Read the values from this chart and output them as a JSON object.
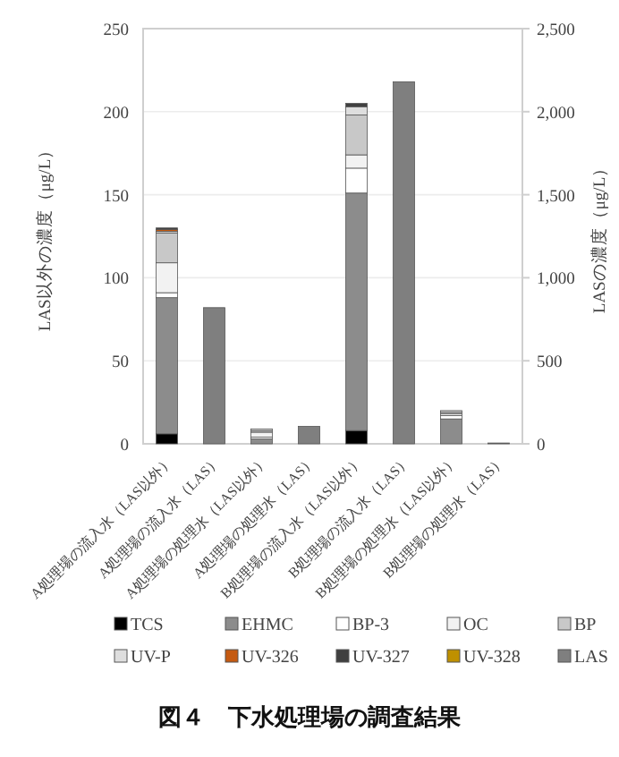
{
  "chart_data": {
    "type": "bar",
    "stacked": true,
    "title": "図４　下水処理場の調査結果",
    "ylabel": "LAS以外の濃度（μg/L）",
    "y2label": "LASの濃度（μg/L）",
    "categories": [
      "A処理場の流入水（LAS以外）",
      "A処理場の流入水（LAS）",
      "A処理場の処理水（LAS以外）",
      "A処理場の処理水（LAS）",
      "B処理場の流入水（LAS以外）",
      "B処理場の流入水（LAS）",
      "B処理場の処理水（LAS以外）",
      "B処理場の処理水（LAS）"
    ],
    "series": [
      {
        "name": "TCS",
        "color": "#000000",
        "values": [
          6,
          null,
          0,
          null,
          8,
          null,
          0,
          null
        ]
      },
      {
        "name": "EHMC",
        "color": "#8c8c8c",
        "values": [
          82,
          null,
          3,
          null,
          143,
          null,
          15,
          null
        ]
      },
      {
        "name": "BP-3",
        "color": "#ffffff",
        "values": [
          3,
          null,
          1,
          null,
          15,
          null,
          2,
          null
        ]
      },
      {
        "name": "OC",
        "color": "#f2f2f2",
        "values": [
          18,
          null,
          3,
          null,
          8,
          null,
          1,
          null
        ]
      },
      {
        "name": "BP",
        "color": "#c8c8c8",
        "values": [
          18,
          null,
          1,
          null,
          24,
          null,
          1,
          null
        ]
      },
      {
        "name": "UV-P",
        "color": "#dedede",
        "values": [
          1,
          null,
          1,
          null,
          5,
          null,
          1,
          null
        ]
      },
      {
        "name": "UV-326",
        "color": "#c55a11",
        "values": [
          1,
          null,
          0,
          null,
          0,
          null,
          0,
          null
        ]
      },
      {
        "name": "UV-327",
        "color": "#404040",
        "values": [
          1,
          null,
          0,
          null,
          2,
          null,
          0,
          null
        ]
      },
      {
        "name": "UV-328",
        "color": "#bf9000",
        "values": [
          0,
          null,
          0,
          null,
          0,
          null,
          0,
          null
        ]
      },
      {
        "name": "LAS",
        "color": "#7f7f7f",
        "axis": "y2",
        "values": [
          null,
          820,
          null,
          105,
          null,
          2180,
          null,
          5
        ]
      }
    ],
    "ylim": [
      0,
      250
    ],
    "yticks": [
      0,
      50,
      100,
      150,
      200,
      250
    ],
    "y2lim": [
      0,
      2500
    ],
    "y2ticks": [
      0,
      500,
      {
        "value": 1000,
        "label": "1,000"
      },
      {
        "value": 1500,
        "label": "1,500"
      },
      {
        "value": 2000,
        "label": "2,000"
      },
      {
        "value": 2500,
        "label": "2,500"
      }
    ],
    "grid": "y",
    "legend": "bottom"
  }
}
